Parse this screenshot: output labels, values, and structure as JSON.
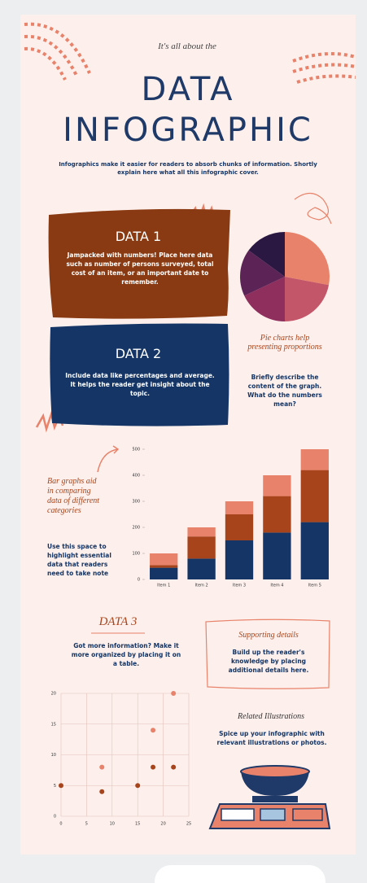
{
  "header": {
    "kicker": "It's all about the",
    "title_line1": "DATA",
    "title_line2": "INFOGRAPHIC",
    "intro": "Infographics make it easier for readers to absorb chunks of information. Shortly explain here what all this infographic cover."
  },
  "data1": {
    "title": "DATA 1",
    "body": "Jampacked with numbers! Place here data such as number of persons surveyed, total cost of an item, or an important date to remember."
  },
  "data2": {
    "title": "DATA 2",
    "body": "Include data like percentages and average. It helps the reader get insight about the topic."
  },
  "pie_note": {
    "heading": "Pie charts help presenting proportions",
    "body": "Briefly describe the content of the graph. What do the numbers mean?"
  },
  "bar_note": {
    "heading": "Bar graphs aid in comparing data of different categories",
    "body": "Use this space to highlight essential data that readers need to take note"
  },
  "data3": {
    "title": "DATA 3",
    "body": "Got more information? Make it more organized by placing it on a table."
  },
  "supporting": {
    "title": "Supporting details",
    "body": "Build up the reader's knowledge by placing additional details here."
  },
  "illustrations": {
    "title": "Related Illustrations",
    "body": "Spice up your infographic with relevant illustrations or photos."
  },
  "chart_data": [
    {
      "type": "pie",
      "values": [
        28,
        22,
        18,
        17,
        15
      ],
      "colors": [
        "#e8826a",
        "#c4566a",
        "#8e2f5e",
        "#5c2456",
        "#2b1842"
      ]
    },
    {
      "type": "bar",
      "stacked": true,
      "categories": [
        "Item 1",
        "Item 2",
        "Item 3",
        "Item 4",
        "Item 5"
      ],
      "series": [
        {
          "color": "#143566",
          "values": [
            45,
            80,
            150,
            180,
            220
          ]
        },
        {
          "color": "#a8441c",
          "values": [
            10,
            85,
            100,
            140,
            200
          ]
        },
        {
          "color": "#e8826a",
          "values": [
            45,
            35,
            50,
            80,
            80
          ]
        }
      ],
      "ylim": [
        0,
        500
      ],
      "yticks": [
        0,
        100,
        200,
        300,
        400,
        500
      ]
    },
    {
      "type": "scatter",
      "series": [
        {
          "color": "#e8826a",
          "x": [
            22,
            18,
            8
          ],
          "values": [
            20,
            14,
            8
          ]
        },
        {
          "color": "#a8441c",
          "x": [
            18,
            22,
            0,
            8,
            15
          ],
          "values": [
            8,
            8,
            5,
            4,
            5
          ]
        }
      ],
      "xlim": [
        0,
        25
      ],
      "xticks": [
        0,
        5,
        10,
        15,
        20,
        25
      ],
      "ylim": [
        0,
        20
      ],
      "yticks": [
        0,
        5,
        10,
        15,
        20
      ],
      "grid": true
    }
  ]
}
